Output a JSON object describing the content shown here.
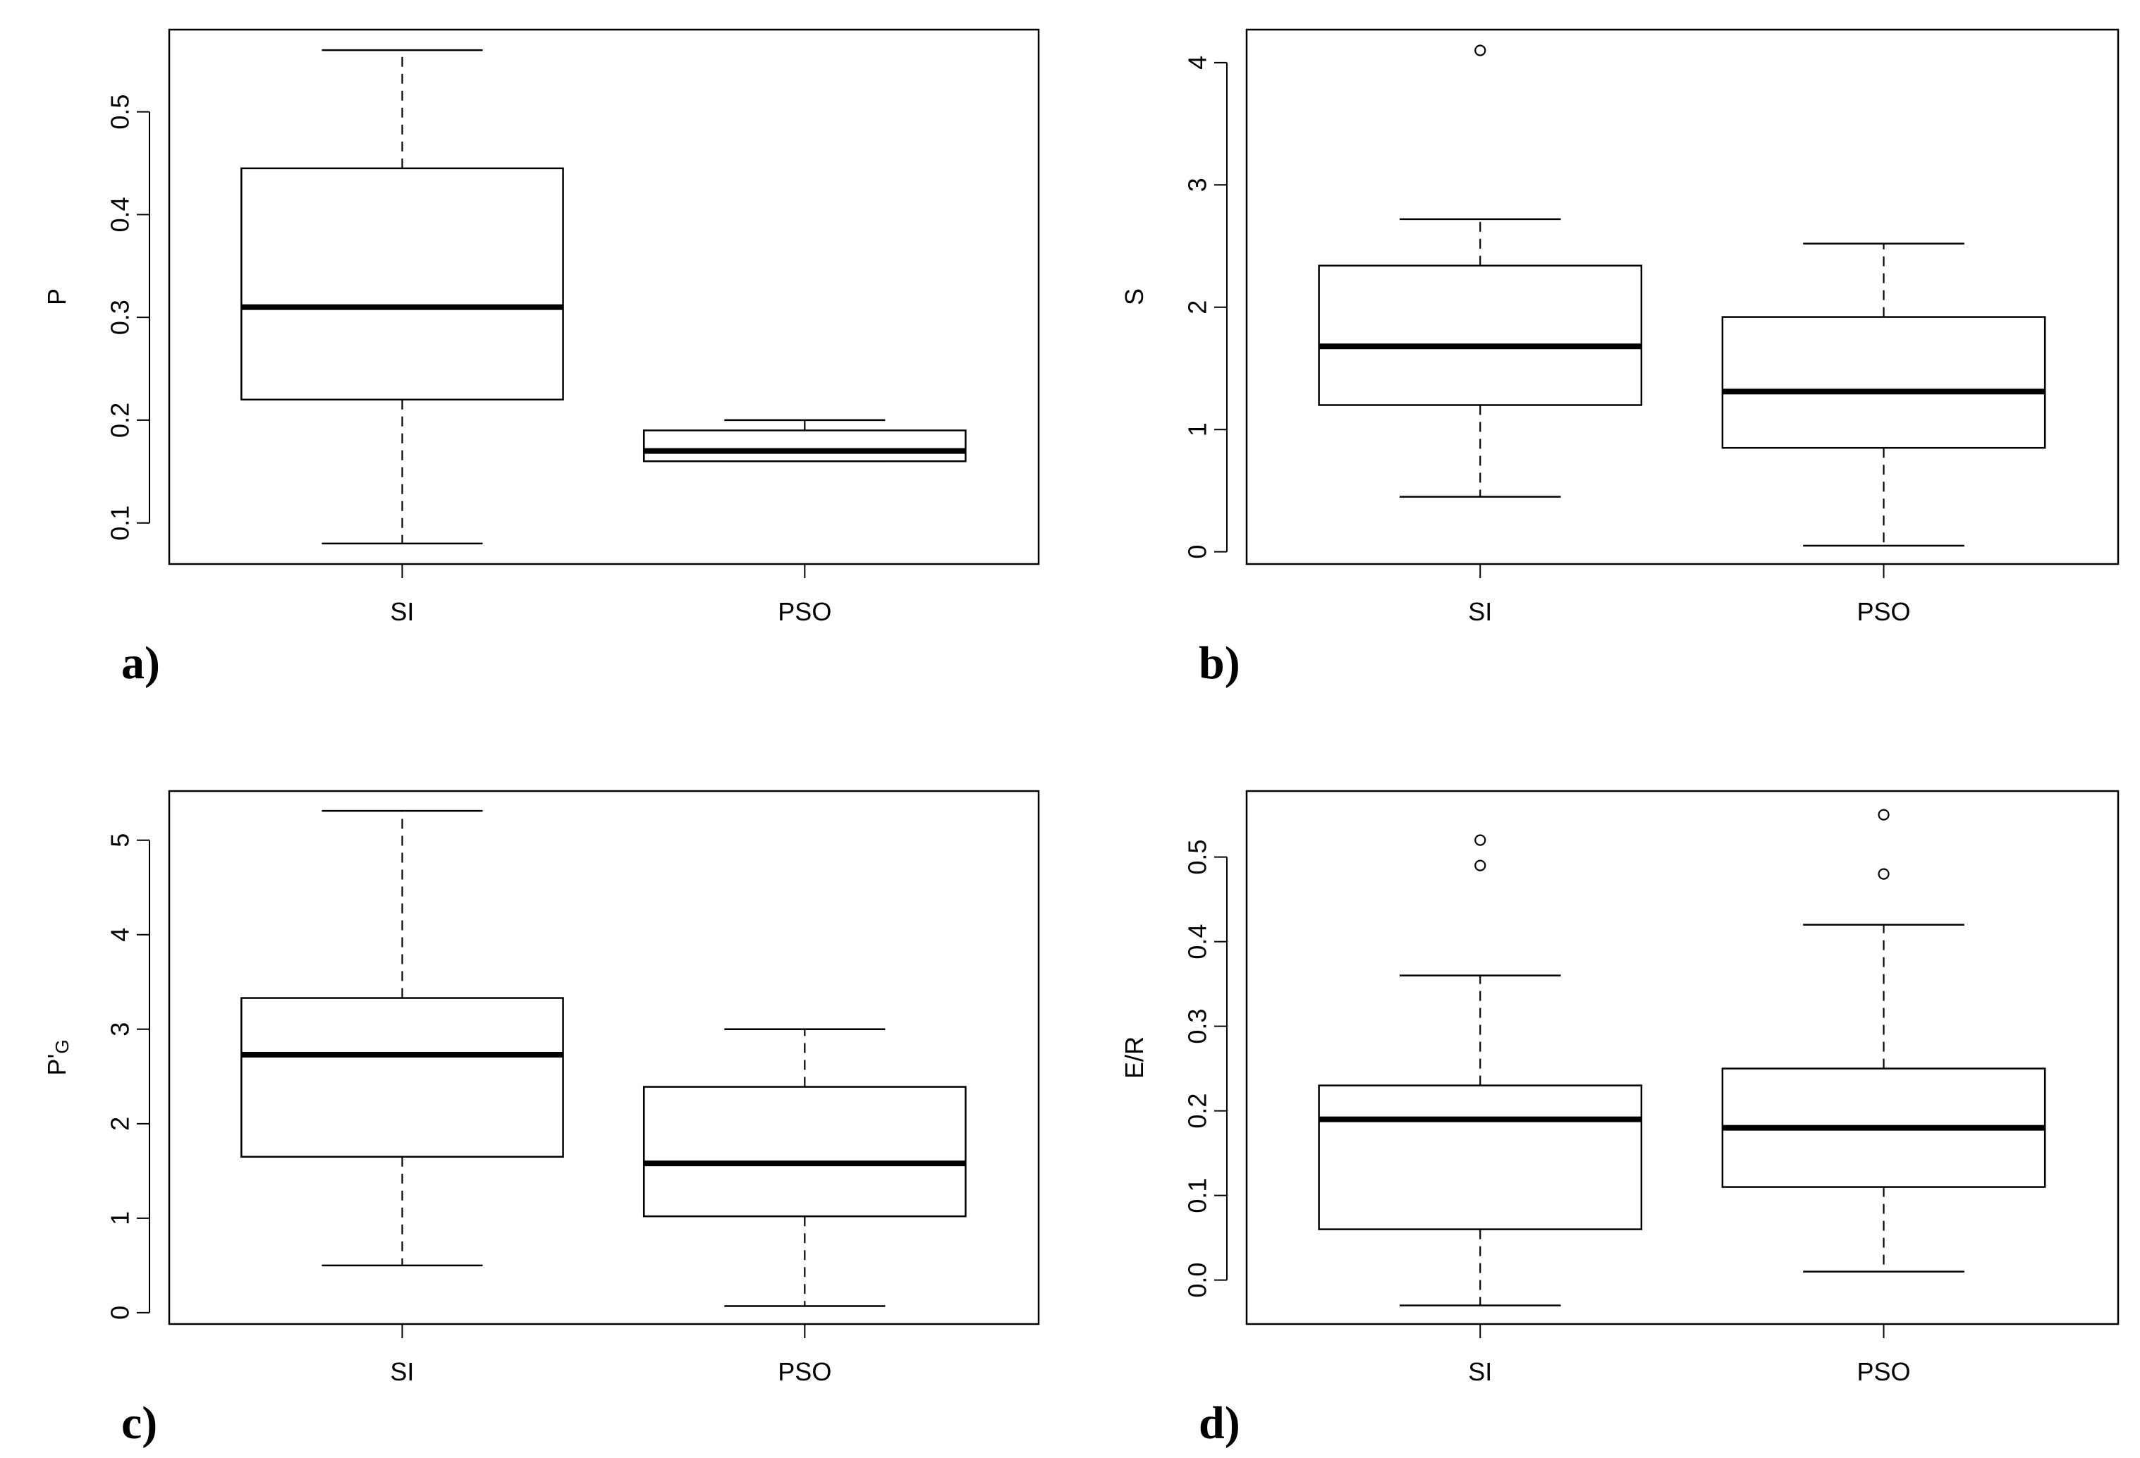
{
  "chart_data": [
    {
      "type": "box",
      "panel_label": "a)",
      "ylabel": "P",
      "ylabel_sub": "",
      "categories": [
        "SI",
        "PSO"
      ],
      "yticks": [
        0.1,
        0.2,
        0.3,
        0.4,
        0.5
      ],
      "ytick_labels": [
        "0.1",
        "0.2",
        "0.3",
        "0.4",
        "0.5"
      ],
      "ylim": [
        0.06,
        0.58
      ],
      "boxes": [
        {
          "name": "SI",
          "whisker_low": 0.08,
          "q1": 0.22,
          "median": 0.31,
          "q3": 0.445,
          "whisker_high": 0.56,
          "outliers": []
        },
        {
          "name": "PSO",
          "whisker_low": 0.16,
          "q1": 0.16,
          "median": 0.17,
          "q3": 0.19,
          "whisker_high": 0.2,
          "outliers": []
        }
      ]
    },
    {
      "type": "box",
      "panel_label": "b)",
      "ylabel": "S",
      "ylabel_sub": "",
      "categories": [
        "SI",
        "PSO"
      ],
      "yticks": [
        0,
        1,
        2,
        3,
        4
      ],
      "ytick_labels": [
        "0",
        "1",
        "2",
        "3",
        "4"
      ],
      "ylim": [
        -0.1,
        4.27
      ],
      "boxes": [
        {
          "name": "SI",
          "whisker_low": 0.45,
          "q1": 1.2,
          "median": 1.68,
          "q3": 2.34,
          "whisker_high": 2.72,
          "outliers": [
            4.1
          ]
        },
        {
          "name": "PSO",
          "whisker_low": 0.05,
          "q1": 0.85,
          "median": 1.31,
          "q3": 1.92,
          "whisker_high": 2.52,
          "outliers": []
        }
      ]
    },
    {
      "type": "box",
      "panel_label": "c)",
      "ylabel": "P'",
      "ylabel_sub": "G",
      "categories": [
        "SI",
        "PSO"
      ],
      "yticks": [
        0,
        1,
        2,
        3,
        4,
        5
      ],
      "ytick_labels": [
        "0",
        "1",
        "2",
        "3",
        "4",
        "5"
      ],
      "ylim": [
        -0.12,
        5.52
      ],
      "boxes": [
        {
          "name": "SI",
          "whisker_low": 0.5,
          "q1": 1.65,
          "median": 2.73,
          "q3": 3.33,
          "whisker_high": 5.31,
          "outliers": []
        },
        {
          "name": "PSO",
          "whisker_low": 0.07,
          "q1": 1.02,
          "median": 1.58,
          "q3": 2.39,
          "whisker_high": 3.0,
          "outliers": []
        }
      ]
    },
    {
      "type": "box",
      "panel_label": "d)",
      "ylabel": "E/R",
      "ylabel_sub": "",
      "categories": [
        "SI",
        "PSO"
      ],
      "yticks": [
        0.0,
        0.1,
        0.2,
        0.3,
        0.4,
        0.5
      ],
      "ytick_labels": [
        "0.0",
        "0.1",
        "0.2",
        "0.3",
        "0.4",
        "0.5"
      ],
      "ylim": [
        -0.052,
        0.578
      ],
      "boxes": [
        {
          "name": "SI",
          "whisker_low": -0.03,
          "q1": 0.06,
          "median": 0.19,
          "q3": 0.23,
          "whisker_high": 0.36,
          "outliers": [
            0.49,
            0.52
          ]
        },
        {
          "name": "PSO",
          "whisker_low": 0.01,
          "q1": 0.11,
          "median": 0.18,
          "q3": 0.25,
          "whisker_high": 0.42,
          "outliers": [
            0.48,
            0.55
          ]
        }
      ]
    }
  ]
}
